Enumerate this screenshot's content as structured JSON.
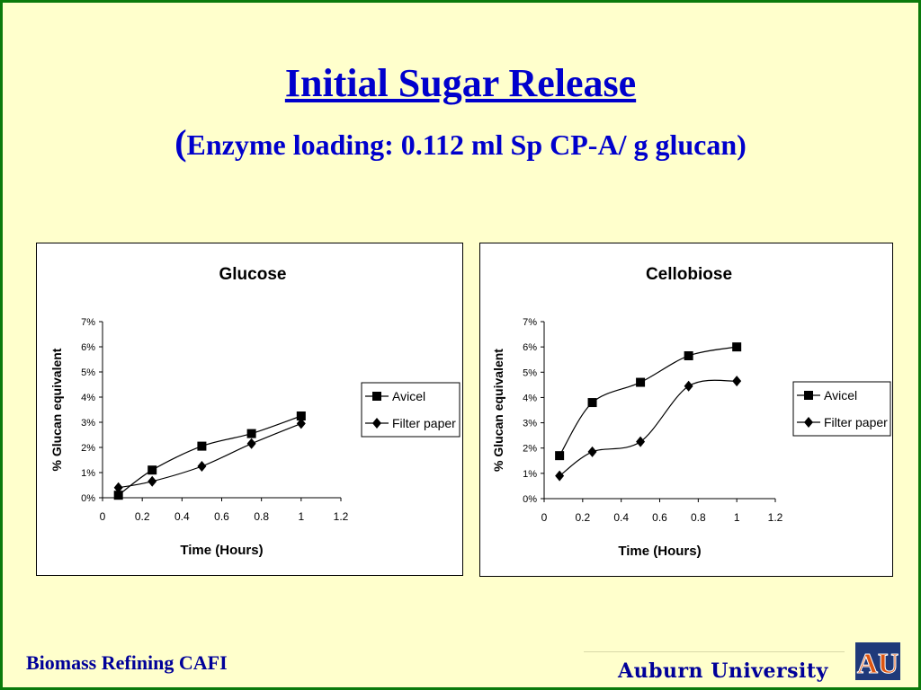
{
  "slide": {
    "title": "Initial Sugar Release",
    "subtitle_open": "(",
    "subtitle": "Enzyme loading: 0.112 ml Sp CP-A/ g glucan)",
    "footer_left": "Biomass Refining CAFI",
    "footer_right": "Auburn University",
    "logo_text": "AU",
    "colors": {
      "background": "#ffffcc",
      "border": "#0b7a0b",
      "title": "#0000cc",
      "footer": "#000099",
      "logo_orange": "#dd5511",
      "logo_blue": "#1f3a7a"
    }
  },
  "chart_data": [
    {
      "type": "line",
      "title": "Glucose",
      "xlabel": "Time (Hours)",
      "ylabel": "% Glucan equivalent",
      "xlim": [
        0,
        1.2
      ],
      "ylim": [
        0,
        0.07
      ],
      "x_ticks": [
        "0",
        "0.2",
        "0.4",
        "0.6",
        "0.8",
        "1",
        "1.2"
      ],
      "y_ticks": [
        "0%",
        "1%",
        "2%",
        "3%",
        "4%",
        "5%",
        "6%",
        "7%"
      ],
      "grid": false,
      "legend": "right",
      "series": [
        {
          "name": "Avicel",
          "marker": "square",
          "x": [
            0.08,
            0.25,
            0.5,
            0.75,
            1.0
          ],
          "y": [
            0.001,
            0.011,
            0.0205,
            0.0255,
            0.0325
          ]
        },
        {
          "name": "Filter paper",
          "marker": "diamond",
          "x": [
            0.08,
            0.25,
            0.5,
            0.75,
            1.0
          ],
          "y": [
            0.004,
            0.0065,
            0.0125,
            0.0215,
            0.0295
          ]
        }
      ]
    },
    {
      "type": "line",
      "title": "Cellobiose",
      "xlabel": "Time (Hours)",
      "ylabel": "% Glucan equivalent",
      "xlim": [
        0,
        1.2
      ],
      "ylim": [
        0,
        0.07
      ],
      "x_ticks": [
        "0",
        "0.2",
        "0.4",
        "0.6",
        "0.8",
        "1",
        "1.2"
      ],
      "y_ticks": [
        "0%",
        "1%",
        "2%",
        "3%",
        "4%",
        "5%",
        "6%",
        "7%"
      ],
      "grid": false,
      "legend": "right",
      "series": [
        {
          "name": "Avicel",
          "marker": "square",
          "x": [
            0.08,
            0.25,
            0.5,
            0.75,
            1.0
          ],
          "y": [
            0.017,
            0.038,
            0.046,
            0.0565,
            0.06
          ]
        },
        {
          "name": "Filter paper",
          "marker": "diamond",
          "x": [
            0.08,
            0.25,
            0.5,
            0.75,
            1.0
          ],
          "y": [
            0.009,
            0.0185,
            0.0225,
            0.0445,
            0.0465
          ]
        }
      ]
    }
  ]
}
